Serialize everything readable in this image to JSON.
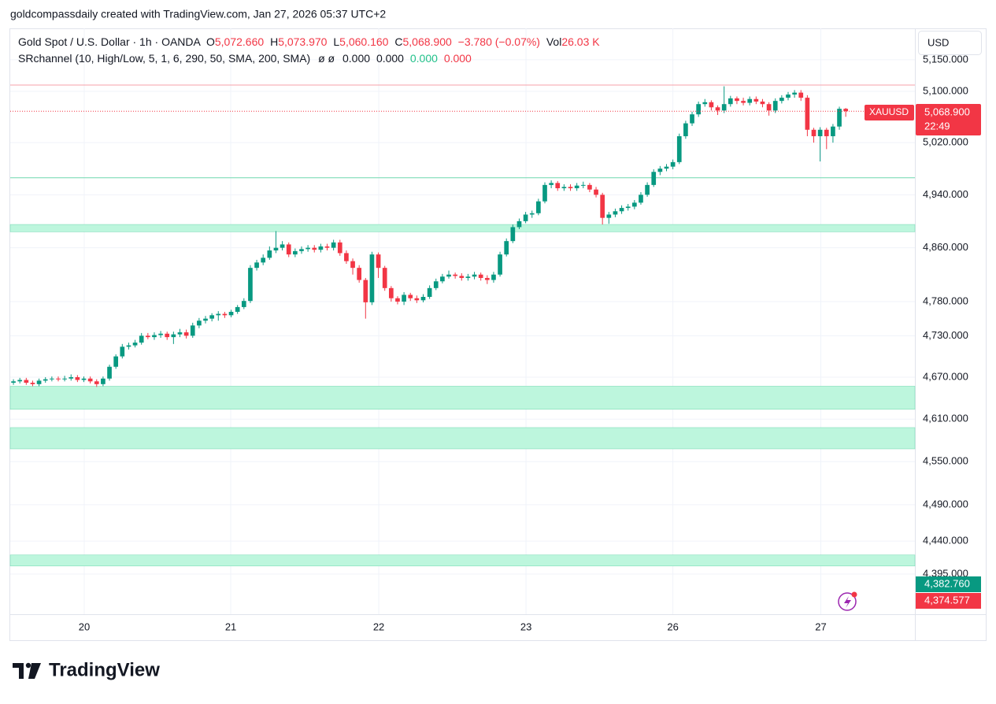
{
  "header": {
    "credit": "goldcompassdaily created with TradingView.com, Jan 27, 2026 05:37 UTC+2",
    "currency": "USD",
    "logo": "TradingView"
  },
  "legend": {
    "symbol": "Gold Spot / U.S. Dollar · 1h · OANDA",
    "o_label": "O",
    "o": "5,072.660",
    "h_label": "H",
    "h": "5,073.970",
    "l_label": "L",
    "l": "5,060.160",
    "c_label": "C",
    "c": "5,068.900",
    "change": "−3.780 (−0.07%)",
    "vol_label": "Vol",
    "vol": "26.03 K",
    "indicator": "SRchannel (10, High/Low, 5, 1, 6, 290, 50, SMA, 200, SMA)",
    "ind_icons": "ø ø",
    "ind_v1": "0.000",
    "ind_v2": "0.000",
    "ind_v3": "0.000",
    "ind_v4": "0.000"
  },
  "price_labels": {
    "symbol": "XAUUSD",
    "price": "5,068.900",
    "countdown": "22:49",
    "green": "4,382.760",
    "red": "4,374.577"
  },
  "chart_data": {
    "type": "candlestick",
    "up_color": "#089981",
    "down_color": "#f23645",
    "log_scale": true,
    "grid": true,
    "ylim": [
      4341,
      5200
    ],
    "yticks": [
      {
        "value": 5150,
        "label": "5,150.000"
      },
      {
        "value": 5100,
        "label": "5,100.000"
      },
      {
        "value": 5020,
        "label": "5,020.000"
      },
      {
        "value": 4940,
        "label": "4,940.000"
      },
      {
        "value": 4860,
        "label": "4,860.000"
      },
      {
        "value": 4780,
        "label": "4,780.000"
      },
      {
        "value": 4730,
        "label": "4,730.000"
      },
      {
        "value": 4670,
        "label": "4,670.000"
      },
      {
        "value": 4610,
        "label": "4,610.000"
      },
      {
        "value": 4550,
        "label": "4,550.000"
      },
      {
        "value": 4490,
        "label": "4,490.000"
      },
      {
        "value": 4440,
        "label": "4,440.000"
      },
      {
        "value": 4395,
        "label": "4,395.000"
      }
    ],
    "xlim": [
      -0.5,
      140.8
    ],
    "xticks": [
      {
        "value": 11.06,
        "label": "20"
      },
      {
        "value": 33.94,
        "label": "21"
      },
      {
        "value": 57.06,
        "label": "22"
      },
      {
        "value": 80.06,
        "label": "23"
      },
      {
        "value": 103,
        "label": "26"
      },
      {
        "value": 126.1,
        "label": "27"
      }
    ],
    "sr_lines": [
      {
        "value": 5110,
        "color": "#f7a1a8"
      },
      {
        "value": 4966,
        "color": "#6fd7ae"
      }
    ],
    "zone_color": "#bdf6dd",
    "zone_edge": "#7fdcb8",
    "sr_zones": [
      [
        4884,
        4895
      ],
      [
        4624,
        4657
      ],
      [
        4568,
        4598
      ],
      [
        4406,
        4421
      ]
    ],
    "x": [
      0,
      1,
      2,
      3,
      4,
      5,
      6,
      7,
      8,
      9,
      10,
      11,
      12,
      13,
      14,
      15,
      16,
      17,
      18,
      19,
      20,
      21,
      22,
      23,
      24,
      25,
      26,
      27,
      28,
      29,
      30,
      31,
      32,
      33,
      34,
      35,
      36,
      37,
      38,
      39,
      40,
      41,
      42,
      43,
      44,
      45,
      46,
      47,
      48,
      49,
      50,
      51,
      52,
      53,
      54,
      55,
      56,
      57,
      58,
      59,
      60,
      61,
      62,
      63,
      64,
      65,
      66,
      67,
      68,
      69,
      70,
      71,
      72,
      73,
      74,
      75,
      76,
      77,
      78,
      79,
      80,
      81,
      82,
      83,
      84,
      85,
      86,
      87,
      88,
      89,
      90,
      91,
      92,
      93,
      94,
      95,
      96,
      97,
      98,
      99,
      100,
      101,
      102,
      103,
      104,
      105,
      106,
      107,
      108,
      109,
      110,
      111,
      112,
      113,
      114,
      115,
      116,
      117,
      118,
      119,
      120,
      121,
      122,
      123,
      124,
      125,
      126,
      127,
      128,
      129,
      130
    ],
    "ohlc": [
      [
        4662,
        4667,
        4659,
        4664
      ],
      [
        4664,
        4669,
        4661,
        4666
      ],
      [
        4666,
        4669,
        4659,
        4662
      ],
      [
        4662,
        4665,
        4657,
        4660
      ],
      [
        4660,
        4668,
        4657,
        4665
      ],
      [
        4665,
        4670,
        4662,
        4667
      ],
      [
        4667,
        4671,
        4664,
        4668
      ],
      [
        4668,
        4671,
        4664,
        4667
      ],
      [
        4667,
        4672,
        4664,
        4668
      ],
      [
        4668,
        4674,
        4665,
        4670
      ],
      [
        4670,
        4673,
        4663,
        4666
      ],
      [
        4666,
        4671,
        4663,
        4668
      ],
      [
        4668,
        4671,
        4661,
        4664
      ],
      [
        4664,
        4667,
        4656,
        4660
      ],
      [
        4660,
        4671,
        4657,
        4668
      ],
      [
        4668,
        4688,
        4665,
        4685
      ],
      [
        4685,
        4703,
        4682,
        4700
      ],
      [
        4700,
        4718,
        4697,
        4714
      ],
      [
        4714,
        4720,
        4710,
        4716
      ],
      [
        4716,
        4724,
        4713,
        4720
      ],
      [
        4720,
        4734,
        4717,
        4730
      ],
      [
        4730,
        4734,
        4725,
        4728
      ],
      [
        4728,
        4735,
        4724,
        4731
      ],
      [
        4731,
        4737,
        4727,
        4733
      ],
      [
        4733,
        4736,
        4724,
        4728
      ],
      [
        4728,
        4736,
        4718,
        4732
      ],
      [
        4732,
        4740,
        4728,
        4735
      ],
      [
        4735,
        4739,
        4726,
        4730
      ],
      [
        4730,
        4749,
        4727,
        4745
      ],
      [
        4745,
        4756,
        4741,
        4752
      ],
      [
        4752,
        4759,
        4748,
        4755
      ],
      [
        4755,
        4763,
        4751,
        4760
      ],
      [
        4760,
        4766,
        4752,
        4762
      ],
      [
        4762,
        4765,
        4756,
        4760
      ],
      [
        4760,
        4768,
        4757,
        4765
      ],
      [
        4765,
        4775,
        4762,
        4772
      ],
      [
        4772,
        4785,
        4769,
        4781
      ],
      [
        4781,
        4834,
        4778,
        4830
      ],
      [
        4830,
        4842,
        4826,
        4838
      ],
      [
        4838,
        4850,
        4834,
        4845
      ],
      [
        4845,
        4862,
        4842,
        4856
      ],
      [
        4856,
        4885,
        4852,
        4860
      ],
      [
        4860,
        4870,
        4856,
        4865
      ],
      [
        4865,
        4868,
        4846,
        4850
      ],
      [
        4850,
        4859,
        4846,
        4855
      ],
      [
        4855,
        4862,
        4851,
        4858
      ],
      [
        4858,
        4864,
        4854,
        4860
      ],
      [
        4860,
        4864,
        4853,
        4857
      ],
      [
        4857,
        4866,
        4853,
        4862
      ],
      [
        4862,
        4866,
        4856,
        4860
      ],
      [
        4860,
        4872,
        4856,
        4868
      ],
      [
        4868,
        4872,
        4848,
        4852
      ],
      [
        4852,
        4856,
        4836,
        4840
      ],
      [
        4840,
        4844,
        4820,
        4830
      ],
      [
        4830,
        4834,
        4808,
        4812
      ],
      [
        4812,
        4815,
        4755,
        4779
      ],
      [
        4779,
        4854,
        4775,
        4850
      ],
      [
        4850,
        4853,
        4815,
        4830
      ],
      [
        4830,
        4833,
        4796,
        4800
      ],
      [
        4800,
        4803,
        4780,
        4785
      ],
      [
        4785,
        4788,
        4776,
        4780
      ],
      [
        4780,
        4794,
        4775,
        4790
      ],
      [
        4790,
        4793,
        4781,
        4785
      ],
      [
        4785,
        4789,
        4778,
        4782
      ],
      [
        4782,
        4791,
        4779,
        4787
      ],
      [
        4787,
        4804,
        4784,
        4800
      ],
      [
        4800,
        4814,
        4797,
        4810
      ],
      [
        4810,
        4821,
        4807,
        4817
      ],
      [
        4817,
        4826,
        4814,
        4820
      ],
      [
        4820,
        4823,
        4814,
        4818
      ],
      [
        4818,
        4822,
        4811,
        4815
      ],
      [
        4815,
        4821,
        4811,
        4817
      ],
      [
        4817,
        4824,
        4813,
        4820
      ],
      [
        4820,
        4823,
        4811,
        4815
      ],
      [
        4815,
        4819,
        4806,
        4812
      ],
      [
        4812,
        4824,
        4808,
        4820
      ],
      [
        4820,
        4854,
        4817,
        4850
      ],
      [
        4850,
        4874,
        4847,
        4870
      ],
      [
        4870,
        4895,
        4867,
        4891
      ],
      [
        4891,
        4904,
        4888,
        4900
      ],
      [
        4900,
        4914,
        4897,
        4910
      ],
      [
        4910,
        4916,
        4905,
        4912
      ],
      [
        4912,
        4934,
        4909,
        4930
      ],
      [
        4930,
        4959,
        4927,
        4955
      ],
      [
        4955,
        4962,
        4950,
        4958
      ],
      [
        4958,
        4961,
        4946,
        4950
      ],
      [
        4950,
        4956,
        4946,
        4952
      ],
      [
        4952,
        4956,
        4946,
        4950
      ],
      [
        4950,
        4958,
        4946,
        4954
      ],
      [
        4954,
        4960,
        4950,
        4955
      ],
      [
        4955,
        4958,
        4944,
        4948
      ],
      [
        4948,
        4952,
        4936,
        4940
      ],
      [
        4940,
        4943,
        4895,
        4905
      ],
      [
        4905,
        4914,
        4896,
        4910
      ],
      [
        4910,
        4919,
        4906,
        4915
      ],
      [
        4915,
        4924,
        4911,
        4920
      ],
      [
        4920,
        4926,
        4916,
        4922
      ],
      [
        4922,
        4932,
        4918,
        4928
      ],
      [
        4928,
        4944,
        4925,
        4940
      ],
      [
        4940,
        4959,
        4937,
        4955
      ],
      [
        4955,
        4979,
        4952,
        4975
      ],
      [
        4975,
        4984,
        4970,
        4980
      ],
      [
        4980,
        4987,
        4976,
        4983
      ],
      [
        4983,
        4994,
        4979,
        4990
      ],
      [
        4990,
        5034,
        4987,
        5030
      ],
      [
        5030,
        5054,
        5026,
        5050
      ],
      [
        5050,
        5068,
        5046,
        5064
      ],
      [
        5064,
        5084,
        5060,
        5080
      ],
      [
        5080,
        5088,
        5076,
        5083
      ],
      [
        5083,
        5086,
        5070,
        5075
      ],
      [
        5075,
        5078,
        5063,
        5070
      ],
      [
        5070,
        5108,
        5066,
        5080
      ],
      [
        5080,
        5093,
        5076,
        5089
      ],
      [
        5089,
        5092,
        5080,
        5085
      ],
      [
        5085,
        5090,
        5078,
        5082
      ],
      [
        5082,
        5092,
        5078,
        5088
      ],
      [
        5088,
        5092,
        5080,
        5084
      ],
      [
        5084,
        5088,
        5075,
        5080
      ],
      [
        5080,
        5083,
        5062,
        5070
      ],
      [
        5070,
        5089,
        5066,
        5085
      ],
      [
        5085,
        5094,
        5081,
        5090
      ],
      [
        5090,
        5099,
        5086,
        5095
      ],
      [
        5095,
        5102,
        5090,
        5098
      ],
      [
        5098,
        5102,
        5085,
        5090
      ],
      [
        5090,
        5094,
        5030,
        5040
      ],
      [
        5040,
        5043,
        5020,
        5030
      ],
      [
        5030,
        5044,
        4991,
        5040
      ],
      [
        5040,
        5043,
        5010,
        5030
      ],
      [
        5030,
        5049,
        5020,
        5045
      ],
      [
        5045,
        5076,
        5040,
        5072.66
      ],
      [
        5072.66,
        5073.97,
        5060.16,
        5068.9
      ]
    ]
  }
}
